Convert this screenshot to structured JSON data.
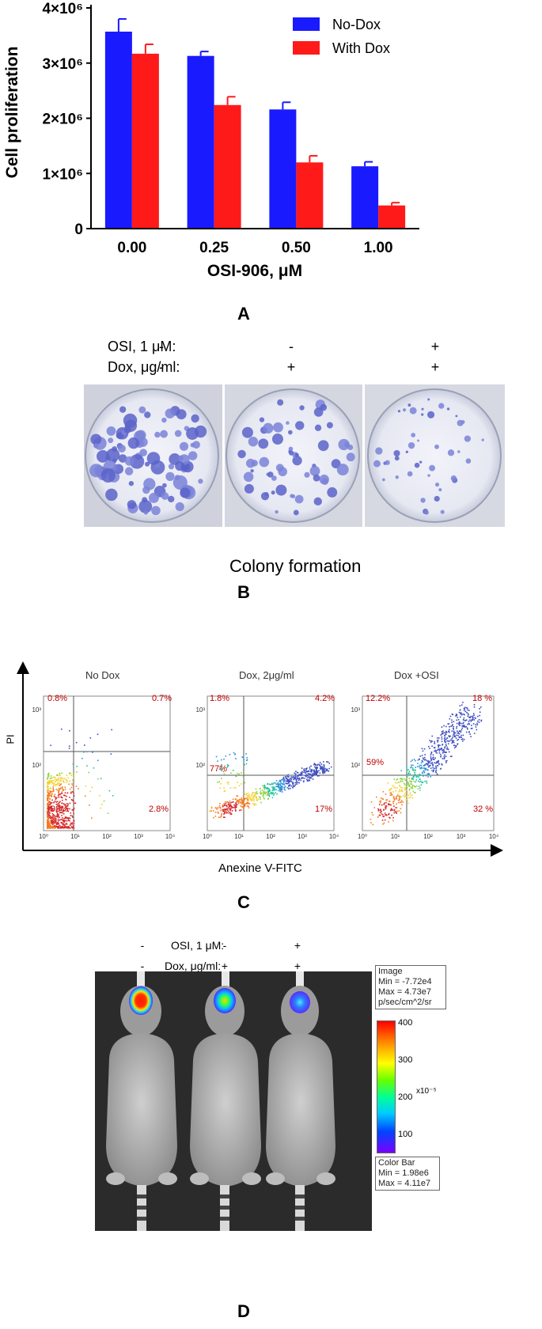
{
  "panels": {
    "a": "A",
    "b": "B",
    "c": "C",
    "d": "D"
  },
  "chart_data": {
    "type": "bar",
    "categories": [
      "0.00",
      "0.25",
      "0.50",
      "1.00"
    ],
    "series": [
      {
        "name": "No-Dox",
        "values": [
          3570000,
          3130000,
          2160000,
          1130000
        ],
        "errors": [
          230000,
          80000,
          130000,
          80000
        ],
        "color": "#1a1aff"
      },
      {
        "name": "With Dox",
        "values": [
          3170000,
          2240000,
          1200000,
          420000
        ],
        "errors": [
          170000,
          150000,
          120000,
          50000
        ],
        "color": "#ff1a1a"
      }
    ],
    "yticks": [
      "0",
      "1×10⁶",
      "2×10⁶",
      "3×10⁶",
      "4×10⁶"
    ],
    "ylim": [
      0,
      4000000
    ],
    "ylabel": "Cell proliferation",
    "xlabel": "OSI-906, μM",
    "legend_position": "top-right"
  },
  "panel_b": {
    "osi_label": "OSI, 1 μM:",
    "dox_label": "Dox, μg/ml:",
    "osi_marks": [
      "-",
      "-",
      "+"
    ],
    "dox_marks": [
      "-",
      "+",
      "+"
    ],
    "caption": "Colony formation"
  },
  "panel_c": {
    "y_axis_label": "PI",
    "x_axis_label": "Anexine V-FITC",
    "tick_labels": [
      "10⁰",
      "10¹",
      "10²",
      "10³",
      "10⁴"
    ],
    "plots": [
      {
        "title": "No Dox",
        "ul": "0.8%",
        "ur": "0.7%",
        "ll": "98%",
        "lr": "2.8%"
      },
      {
        "title": "Dox, 2μg/ml",
        "ul": "1.8%",
        "ur": "4.2%",
        "ll": "77%",
        "lr": "17%"
      },
      {
        "title": "Dox +OSI",
        "ul": "12.2%",
        "ur": "18 %",
        "ll": "59%",
        "lr": "32 %"
      }
    ]
  },
  "panel_d": {
    "osi_label": "OSI, 1 μM:",
    "dox_label": "Dox, μg/ml:",
    "osi_marks": [
      "-",
      "-",
      "+"
    ],
    "dox_marks": [
      "-",
      "+",
      "+"
    ],
    "image_box": [
      "Image",
      "Min = -7.72e4",
      "Max = 4.73e7",
      "p/sec/cm^2/sr"
    ],
    "scale_ticks": [
      "400",
      "300",
      "200",
      "100"
    ],
    "scale_unit": "x10⁻⁵",
    "color_bar_box": [
      "Color Bar",
      "Min = 1.98e6",
      "Max = 4.11e7"
    ]
  }
}
